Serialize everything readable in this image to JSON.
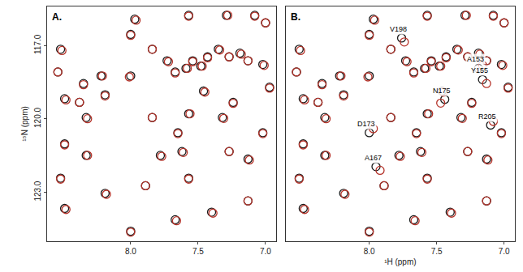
{
  "chart_data": [
    {
      "type": "scatter",
      "title": "A.",
      "marker": "circle-open",
      "grid": false,
      "xlim": [
        8.62,
        6.92
      ],
      "ylim": [
        125.0,
        115.4
      ],
      "xticks": [
        {
          "value": 8.0,
          "label": "8.0"
        },
        {
          "value": 7.5,
          "label": "7.5"
        },
        {
          "value": 7.0,
          "label": "7.0"
        }
      ],
      "yticks": [
        {
          "value": 117.0,
          "label": "117.0"
        },
        {
          "value": 120.0,
          "label": "120.0"
        },
        {
          "value": 123.0,
          "label": "123.0"
        }
      ],
      "ylabel": "¹⁵N (ppm)",
      "series": [
        {
          "color": "#1a1a1a",
          "x": [
            8.52,
            8.54,
            8.49,
            8.38,
            8.33,
            8.35,
            8.22,
            8.19,
            8.0,
            7.84,
            7.73,
            7.67,
            7.59,
            7.54,
            7.48,
            7.43,
            7.35,
            7.27,
            7.19,
            7.13,
            8.0,
            7.97,
            7.57,
            7.29,
            7.08,
            7.0,
            7.02,
            6.97,
            7.46,
            7.24,
            7.57,
            7.65,
            7.62,
            7.27,
            7.13,
            8.49,
            8.33,
            8.52,
            8.19,
            7.89,
            7.78,
            7.57,
            7.4,
            7.13,
            8.49,
            8.0,
            7.67,
            7.02,
            7.32,
            7.84
          ],
          "values": [
            117.15,
            118.08,
            119.17,
            119.32,
            119.94,
            118.55,
            118.24,
            119.01,
            118.24,
            117.15,
            117.62,
            118.08,
            117.93,
            117.62,
            117.84,
            117.46,
            117.15,
            117.46,
            117.31,
            117.62,
            116.54,
            115.92,
            115.76,
            115.76,
            115.76,
            116.07,
            117.77,
            118.7,
            118.86,
            119.32,
            119.79,
            120.56,
            121.33,
            121.33,
            121.64,
            121.02,
            121.49,
            122.42,
            123.04,
            122.73,
            121.49,
            122.42,
            123.81,
            123.35,
            123.66,
            124.59,
            124.12,
            120.56,
            119.94,
            119.94
          ]
        },
        {
          "color": "#b5332a",
          "x": [
            8.51,
            8.54,
            8.48,
            8.38,
            8.32,
            8.35,
            8.21,
            8.19,
            8.01,
            7.84,
            7.72,
            7.67,
            7.58,
            7.54,
            7.47,
            7.43,
            7.34,
            7.27,
            7.18,
            7.13,
            8.0,
            7.96,
            7.57,
            7.28,
            7.08,
            7.0,
            7.01,
            6.97,
            7.45,
            7.24,
            7.56,
            7.65,
            7.61,
            7.27,
            7.12,
            8.49,
            8.32,
            8.52,
            8.18,
            7.89,
            7.77,
            7.57,
            7.39,
            7.13,
            8.48,
            8.0,
            7.66,
            7.02,
            7.31,
            7.84
          ],
          "values": [
            117.2,
            118.08,
            119.22,
            119.32,
            119.99,
            118.6,
            118.24,
            119.06,
            118.28,
            117.15,
            117.66,
            118.12,
            117.93,
            117.66,
            117.84,
            117.5,
            117.18,
            117.46,
            117.35,
            117.62,
            116.58,
            115.96,
            115.8,
            115.76,
            115.8,
            116.07,
            117.81,
            118.74,
            118.9,
            119.36,
            119.79,
            120.6,
            121.37,
            121.33,
            121.68,
            121.06,
            121.49,
            122.46,
            123.08,
            122.73,
            121.53,
            122.46,
            123.85,
            123.35,
            123.7,
            124.63,
            124.16,
            120.6,
            119.98,
            119.94
          ]
        }
      ]
    },
    {
      "type": "scatter",
      "title": "B.",
      "marker": "circle-open",
      "grid": false,
      "tick_labels": "x",
      "xlim": [
        8.62,
        6.92
      ],
      "ylim": [
        125.0,
        115.4
      ],
      "xticks": [
        {
          "value": 8.0,
          "label": "8.0"
        },
        {
          "value": 7.5,
          "label": "7.5"
        },
        {
          "value": 7.0,
          "label": "7.0"
        }
      ],
      "xlabel": "¹H (ppm)",
      "series": [
        {
          "color": "#1a1a1a",
          "x": [
            8.52,
            8.54,
            8.49,
            8.38,
            8.33,
            8.35,
            8.22,
            8.19,
            8.0,
            7.84,
            7.73,
            7.67,
            7.59,
            7.54,
            7.48,
            7.43,
            7.35,
            7.27,
            7.19,
            7.13,
            8.0,
            7.97,
            7.57,
            7.29,
            7.08,
            7.0,
            7.02,
            6.97,
            7.46,
            7.24,
            7.57,
            7.65,
            7.62,
            7.27,
            7.13,
            8.49,
            8.33,
            8.52,
            8.19,
            7.89,
            7.78,
            7.57,
            7.4,
            7.13,
            8.49,
            8.0,
            7.67,
            7.02,
            7.32,
            7.84,
            7.76,
            7.19,
            7.16,
            7.44,
            8.0,
            7.1,
            7.95
          ],
          "values": [
            117.15,
            118.08,
            119.17,
            119.32,
            119.94,
            118.55,
            118.24,
            119.01,
            118.24,
            117.15,
            117.62,
            118.08,
            117.93,
            117.62,
            117.84,
            117.46,
            117.15,
            117.46,
            117.31,
            117.62,
            116.54,
            115.92,
            115.76,
            115.76,
            115.76,
            116.07,
            117.77,
            118.7,
            118.86,
            119.32,
            119.79,
            120.56,
            121.33,
            121.33,
            121.64,
            121.02,
            121.49,
            122.42,
            123.04,
            122.73,
            121.49,
            122.42,
            123.81,
            123.35,
            123.66,
            124.59,
            124.12,
            120.56,
            119.94,
            119.94,
            116.69,
            117.93,
            118.39,
            119.2,
            120.56,
            120.25,
            121.95
          ]
        },
        {
          "color": "#b5332a",
          "x": [
            8.51,
            8.54,
            8.48,
            8.38,
            8.32,
            8.35,
            8.21,
            8.19,
            8.01,
            7.84,
            7.72,
            7.67,
            7.58,
            7.54,
            7.47,
            7.43,
            7.34,
            7.27,
            7.18,
            7.13,
            8.0,
            7.96,
            7.57,
            7.28,
            7.08,
            7.0,
            7.01,
            6.97,
            7.45,
            7.24,
            7.56,
            7.65,
            7.61,
            7.27,
            7.12,
            8.49,
            8.32,
            8.52,
            8.18,
            7.89,
            7.77,
            7.57,
            7.39,
            7.13,
            8.48,
            8.0,
            7.66,
            7.02,
            7.31,
            7.84,
            7.74,
            7.16,
            7.13,
            7.47,
            7.97,
            7.08,
            7.92
          ],
          "values": [
            117.2,
            118.08,
            119.22,
            119.32,
            119.99,
            118.6,
            118.24,
            119.06,
            118.28,
            117.15,
            117.66,
            118.12,
            117.93,
            117.66,
            117.84,
            117.5,
            117.18,
            117.46,
            117.35,
            117.62,
            116.58,
            115.96,
            115.8,
            115.76,
            115.8,
            116.07,
            117.81,
            118.74,
            118.9,
            119.36,
            119.79,
            120.6,
            121.37,
            121.33,
            121.68,
            121.06,
            121.49,
            122.46,
            123.08,
            122.73,
            121.53,
            122.46,
            123.85,
            123.35,
            123.7,
            124.63,
            124.16,
            120.6,
            119.98,
            119.94,
            116.85,
            117.8,
            118.55,
            119.35,
            120.4,
            120.1,
            122.1
          ]
        }
      ],
      "annotations": [
        {
          "text": "V198",
          "x": 7.76,
          "y": 116.69
        },
        {
          "text": "A153",
          "x": 7.19,
          "y": 117.93
        },
        {
          "text": "Y155",
          "x": 7.16,
          "y": 118.39
        },
        {
          "text": "N175",
          "x": 7.44,
          "y": 119.2
        },
        {
          "text": "D173",
          "x": 8.0,
          "y": 120.56
        },
        {
          "text": "R205",
          "x": 7.1,
          "y": 120.25
        },
        {
          "text": "A167",
          "x": 7.95,
          "y": 121.95
        }
      ]
    }
  ]
}
